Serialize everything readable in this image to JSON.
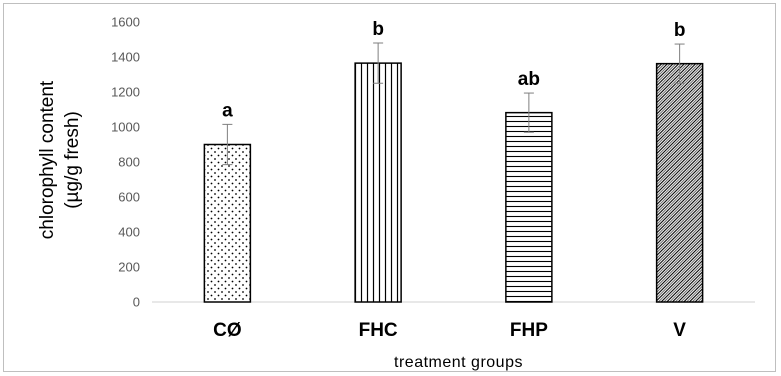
{
  "chart_data": {
    "type": "bar",
    "categories": [
      "CØ",
      "FHC",
      "FHP",
      "V"
    ],
    "values": [
      900,
      1365,
      1082,
      1362
    ],
    "error": [
      115,
      115,
      112,
      112
    ],
    "significance": [
      "a",
      "b",
      "ab",
      "b"
    ],
    "patterns": [
      "dots",
      "vertical-lines",
      "horizontal-lines",
      "diagonal-hatch"
    ],
    "xlabel": "treatment groups",
    "ylabel_lines": [
      "chlorophyll content",
      "(µg/g fresh)"
    ],
    "ylim": [
      0,
      1600
    ],
    "yticks": [
      0,
      200,
      400,
      600,
      800,
      1000,
      1200,
      1400,
      1600
    ],
    "grid": false,
    "legend": "none"
  }
}
